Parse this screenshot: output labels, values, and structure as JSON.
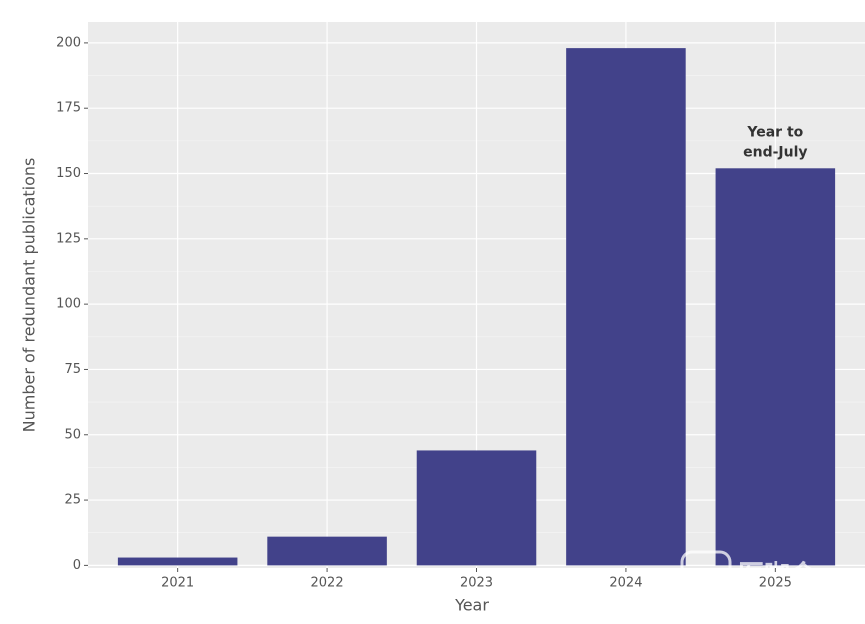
{
  "chart_data": {
    "type": "bar",
    "categories": [
      "2021",
      "2022",
      "2023",
      "2024",
      "2025"
    ],
    "values": [
      3,
      11,
      44,
      198,
      152
    ],
    "color": "#42428a",
    "xlabel": "Year",
    "ylabel": "Number of redundant publications",
    "ylim": [
      -1,
      208
    ],
    "yticks": [
      0,
      25,
      50,
      75,
      100,
      125,
      150,
      175,
      200
    ],
    "grid": true,
    "annotation": {
      "lines": [
        "Year to",
        "end-July"
      ],
      "category": 4
    },
    "watermark": "医咖会"
  }
}
